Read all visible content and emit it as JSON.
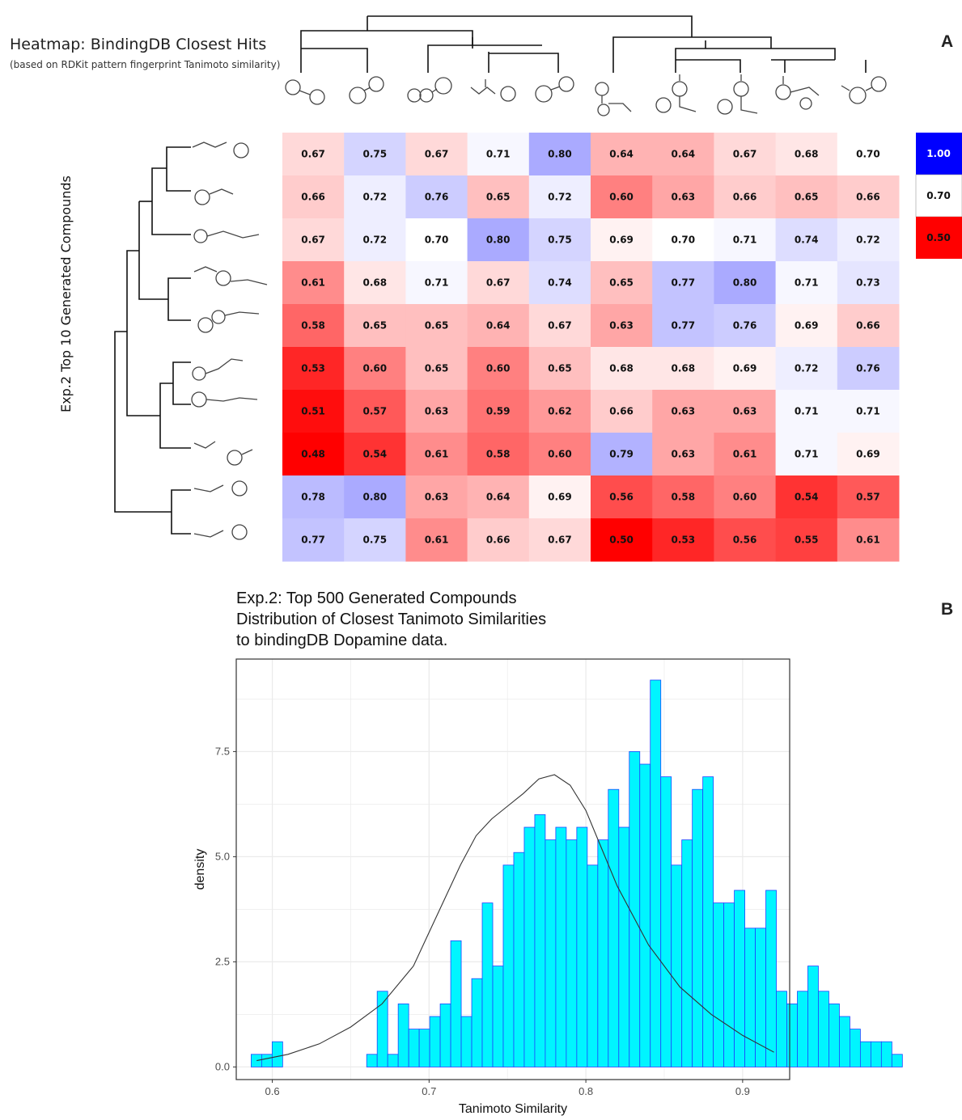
{
  "panel_a": {
    "letter": "A",
    "title": "Heatmap: BindingDB Closest Hits",
    "subtitle": "(based on RDKit pattern fingerprint Tanimoto similarity)",
    "ylabel": "Exp.2 Top 10 Generated Compounds",
    "legend_labels": [
      "1.00",
      "0.70",
      "0.50"
    ],
    "colors": {
      "high": "#0000ff",
      "mid": "#ffffff",
      "low": "#ff0000"
    }
  },
  "panel_b": {
    "letter": "B",
    "title_lines": [
      "Exp.2: Top 500 Generated Compounds",
      "Distribution of Closest Tanimoto Similarities",
      "to bindingDB Dopamine data."
    ],
    "colors": {
      "bar_fill": "#00f5ff",
      "bar_stroke": "#1c46ff",
      "density_line": "#333333",
      "grid": "#ebebeb"
    }
  },
  "chart_data": [
    {
      "type": "heatmap",
      "title": "Heatmap: BindingDB Closest Hits",
      "subtitle": "(based on RDKit pattern fingerprint Tanimoto similarity)",
      "ylabel": "Exp.2 Top 10 Generated Compounds",
      "color_scale": {
        "min": 0.5,
        "mid": 0.7,
        "max": 1.0
      },
      "values": [
        [
          0.67,
          0.75,
          0.67,
          0.71,
          0.8,
          0.64,
          0.64,
          0.67,
          0.68,
          0.7
        ],
        [
          0.66,
          0.72,
          0.76,
          0.65,
          0.72,
          0.6,
          0.63,
          0.66,
          0.65,
          0.66
        ],
        [
          0.67,
          0.72,
          0.7,
          0.8,
          0.75,
          0.69,
          0.7,
          0.71,
          0.74,
          0.72
        ],
        [
          0.61,
          0.68,
          0.71,
          0.67,
          0.74,
          0.65,
          0.77,
          0.8,
          0.71,
          0.73
        ],
        [
          0.58,
          0.65,
          0.65,
          0.64,
          0.67,
          0.63,
          0.77,
          0.76,
          0.69,
          0.66
        ],
        [
          0.53,
          0.6,
          0.65,
          0.6,
          0.65,
          0.68,
          0.68,
          0.69,
          0.72,
          0.76
        ],
        [
          0.51,
          0.57,
          0.63,
          0.59,
          0.62,
          0.66,
          0.63,
          0.63,
          0.71,
          0.71
        ],
        [
          0.48,
          0.54,
          0.61,
          0.58,
          0.6,
          0.79,
          0.63,
          0.61,
          0.71,
          0.69
        ],
        [
          0.78,
          0.8,
          0.63,
          0.64,
          0.69,
          0.56,
          0.58,
          0.6,
          0.54,
          0.57
        ],
        [
          0.77,
          0.75,
          0.61,
          0.66,
          0.67,
          0.5,
          0.53,
          0.56,
          0.55,
          0.61
        ]
      ]
    },
    {
      "type": "bar",
      "title": "Exp.2: Top 500 Generated Compounds Distribution of Closest Tanimoto Similarities to bindingDB Dopamine data.",
      "xlabel": "Tanimoto Similarity",
      "ylabel": "density",
      "xlim": [
        0.577,
        0.93
      ],
      "ylim": [
        -0.3,
        9.7
      ],
      "x_ticks": [
        0.6,
        0.7,
        0.8,
        0.9
      ],
      "x_tick_labels": [
        "0.6",
        "0.7",
        "0.8",
        "0.9"
      ],
      "y_ticks": [
        0.0,
        2.5,
        5.0,
        7.5
      ],
      "y_tick_labels": [
        "0.0",
        "2.5",
        "5.0",
        "7.5"
      ],
      "grid": true,
      "bin_start": 0.5865,
      "bin_width": 0.0067,
      "values": [
        0.3,
        0.3,
        0.6,
        0.0,
        0.0,
        0.0,
        0.0,
        0.0,
        0.0,
        0.0,
        0.0,
        0.3,
        1.8,
        0.3,
        1.5,
        0.9,
        0.9,
        1.2,
        1.5,
        3.0,
        1.2,
        2.1,
        3.9,
        2.4,
        4.8,
        5.1,
        5.7,
        6.0,
        5.4,
        5.7,
        5.4,
        5.7,
        4.8,
        5.4,
        6.6,
        5.7,
        7.5,
        7.2,
        9.2,
        6.9,
        4.8,
        5.4,
        6.6,
        6.9,
        3.9,
        3.9,
        4.2,
        3.3,
        3.3,
        4.2,
        1.8,
        1.5,
        1.8,
        2.4,
        1.8,
        1.5,
        1.2,
        0.9,
        0.6,
        0.6,
        0.6,
        0.3
      ],
      "density_curve": {
        "x": [
          0.59,
          0.61,
          0.63,
          0.65,
          0.67,
          0.69,
          0.7,
          0.71,
          0.72,
          0.73,
          0.74,
          0.75,
          0.76,
          0.77,
          0.78,
          0.79,
          0.8,
          0.81,
          0.82,
          0.84,
          0.86,
          0.88,
          0.9,
          0.92
        ],
        "y": [
          0.15,
          0.3,
          0.55,
          0.95,
          1.5,
          2.4,
          3.2,
          4.0,
          4.8,
          5.5,
          5.9,
          6.2,
          6.5,
          6.85,
          6.95,
          6.7,
          6.1,
          5.2,
          4.3,
          2.9,
          1.9,
          1.25,
          0.75,
          0.35
        ]
      }
    }
  ]
}
